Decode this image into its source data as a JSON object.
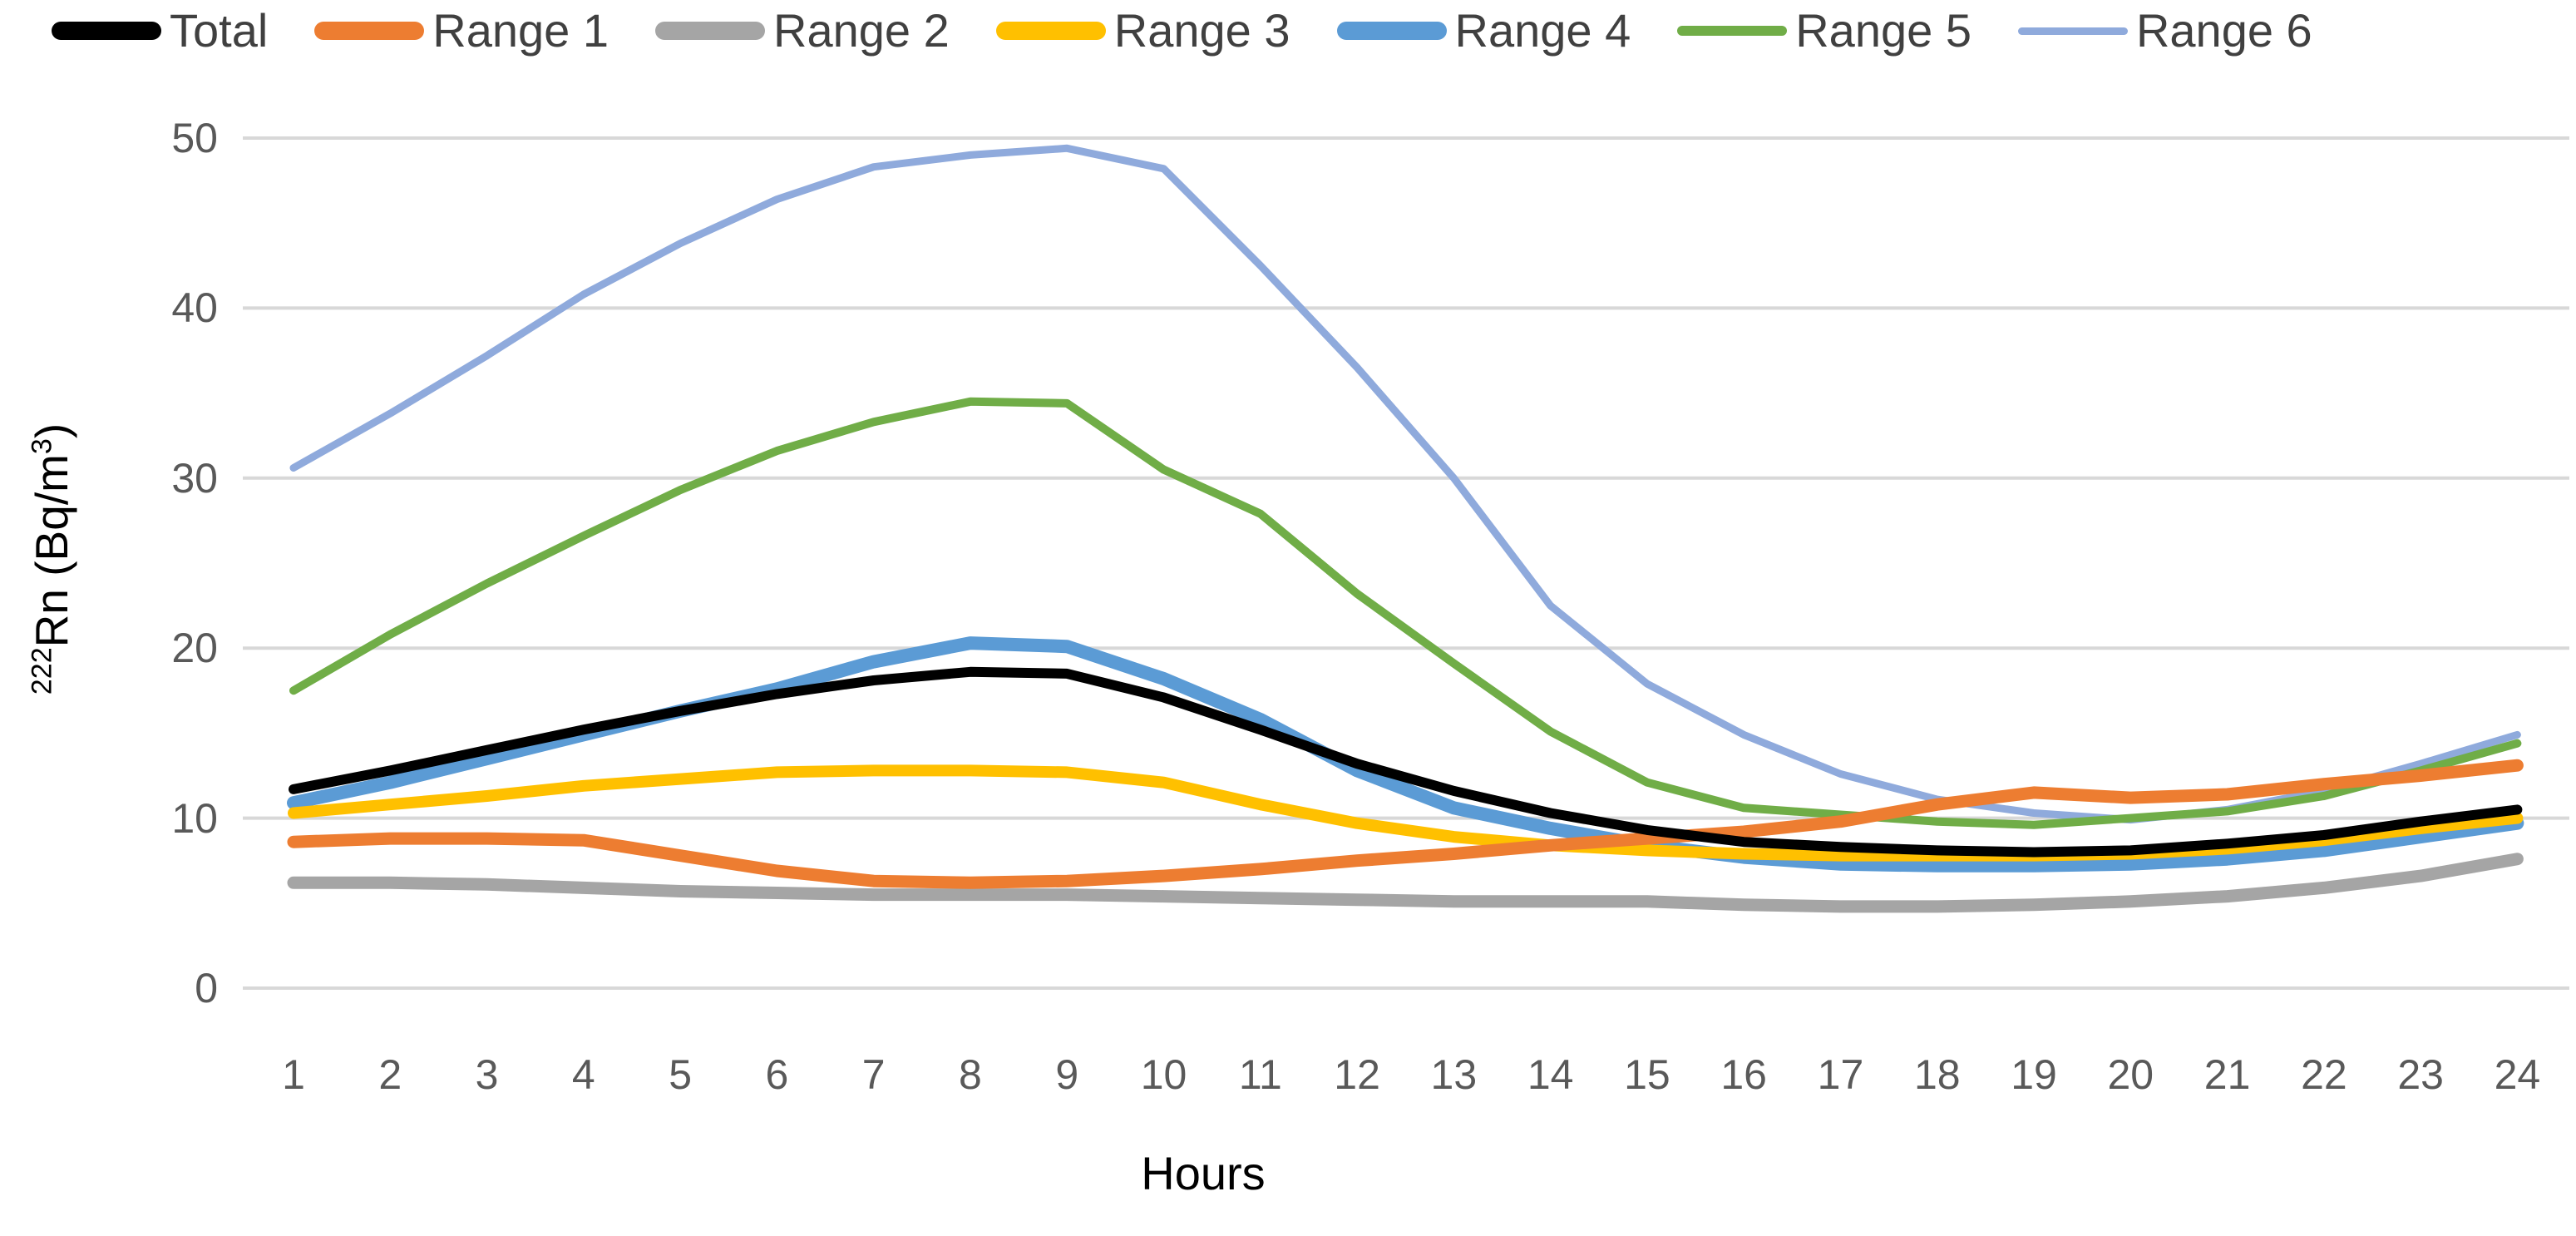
{
  "chart_data": {
    "type": "line",
    "title": "",
    "xlabel": "Hours",
    "ylabel": "²²²Rn (Bq/m³)",
    "ylabel_parts": {
      "mass_superscript": "222",
      "element_and_unit": "Rn (Bq/m",
      "exponent_superscript": "3",
      "closing_paren": ")"
    },
    "x": [
      1,
      2,
      3,
      4,
      5,
      6,
      7,
      8,
      9,
      10,
      11,
      12,
      13,
      14,
      15,
      16,
      17,
      18,
      19,
      20,
      21,
      22,
      23,
      24
    ],
    "x_tick_labels": [
      "1",
      "2",
      "3",
      "4",
      "5",
      "6",
      "7",
      "8",
      "9",
      "10",
      "11",
      "12",
      "13",
      "14",
      "15",
      "16",
      "17",
      "18",
      "19",
      "20",
      "21",
      "22",
      "23",
      "24"
    ],
    "y_ticks": [
      0,
      10,
      20,
      30,
      40,
      50
    ],
    "y_tick_labels": [
      "0",
      "10",
      "20",
      "30",
      "40",
      "50"
    ],
    "ylim": [
      0,
      50
    ],
    "grid": "horizontal",
    "legend_position": "top",
    "series": [
      {
        "name": "Total",
        "color": "#000000",
        "values": [
          11.7,
          12.8,
          14.0,
          15.2,
          16.3,
          17.3,
          18.1,
          18.6,
          18.5,
          17.1,
          15.2,
          13.2,
          11.6,
          10.3,
          9.3,
          8.6,
          8.3,
          8.1,
          8.0,
          8.1,
          8.5,
          9.0,
          9.8,
          10.5
        ]
      },
      {
        "name": "Range 1",
        "color": "#ED7D31",
        "values": [
          8.6,
          8.8,
          8.8,
          8.7,
          7.8,
          6.9,
          6.3,
          6.2,
          6.3,
          6.6,
          7.0,
          7.5,
          7.9,
          8.4,
          8.8,
          9.2,
          9.8,
          10.8,
          11.5,
          11.2,
          11.4,
          12.0,
          12.5,
          13.1
        ]
      },
      {
        "name": "Range 2",
        "color": "#A5A5A5",
        "values": [
          6.2,
          6.2,
          6.1,
          5.9,
          5.7,
          5.6,
          5.5,
          5.5,
          5.5,
          5.4,
          5.3,
          5.2,
          5.1,
          5.1,
          5.1,
          4.9,
          4.8,
          4.8,
          4.9,
          5.1,
          5.4,
          5.9,
          6.6,
          7.6
        ]
      },
      {
        "name": "Range 3",
        "color": "#FFC000",
        "values": [
          10.3,
          10.8,
          11.3,
          11.9,
          12.3,
          12.7,
          12.8,
          12.8,
          12.7,
          12.1,
          10.8,
          9.7,
          8.9,
          8.4,
          8.1,
          7.9,
          7.8,
          7.8,
          7.8,
          7.9,
          8.2,
          8.7,
          9.4,
          10.0
        ]
      },
      {
        "name": "Range 4",
        "color": "#5B9BD5",
        "values": [
          10.9,
          12.1,
          13.5,
          14.9,
          16.3,
          17.6,
          19.2,
          20.3,
          20.1,
          18.2,
          15.8,
          12.8,
          10.6,
          9.4,
          8.4,
          7.7,
          7.3,
          7.2,
          7.2,
          7.3,
          7.6,
          8.1,
          8.9,
          9.7
        ]
      },
      {
        "name": "Range 5",
        "color": "#70AD47",
        "values": [
          17.5,
          20.8,
          23.8,
          26.6,
          29.3,
          31.6,
          33.3,
          34.5,
          34.4,
          30.5,
          27.9,
          23.2,
          19.1,
          15.1,
          12.1,
          10.6,
          10.2,
          9.8,
          9.6,
          10.0,
          10.4,
          11.3,
          12.8,
          14.4
        ]
      },
      {
        "name": "Range 6",
        "color": "#8FAADC",
        "values": [
          30.6,
          33.8,
          37.2,
          40.8,
          43.8,
          46.4,
          48.3,
          49.0,
          49.4,
          48.2,
          42.5,
          36.5,
          30.0,
          22.5,
          17.9,
          14.9,
          12.6,
          11.1,
          10.3,
          9.9,
          10.5,
          11.6,
          13.2,
          14.9
        ]
      }
    ]
  },
  "colors": {
    "background": "#FFFFFF",
    "gridline": "#D8D8D8",
    "tick_label": "#595959",
    "legend_label": "#404040",
    "axis_title": "#000000"
  }
}
